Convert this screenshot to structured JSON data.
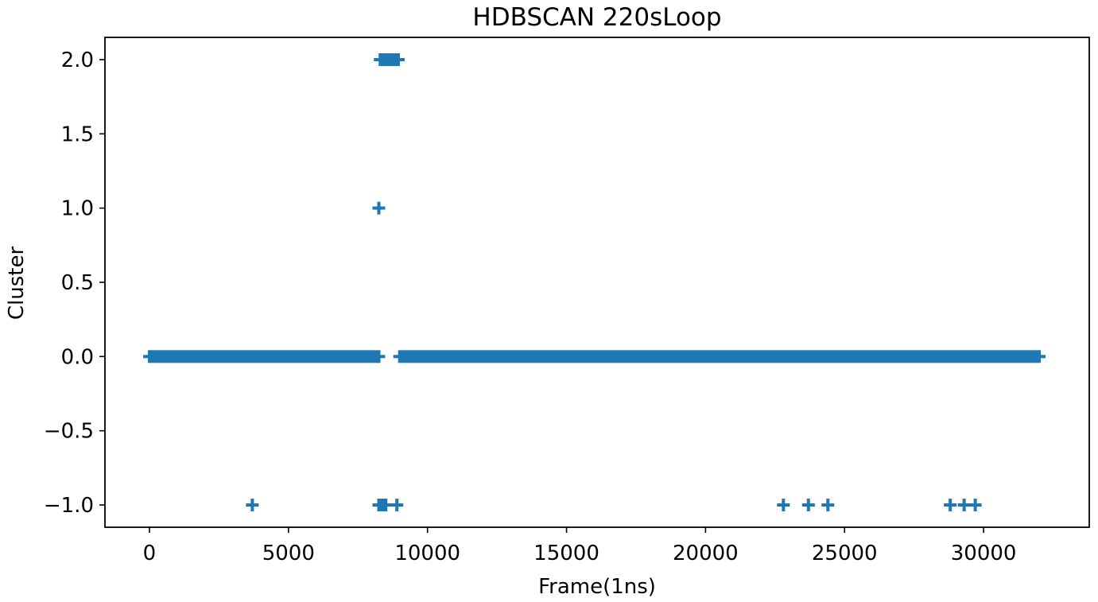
{
  "chart_data": {
    "type": "scatter",
    "title": "HDBSCAN 220sLoop",
    "xlabel": "Frame(1ns)",
    "ylabel": "Cluster",
    "xlim": [
      -1600,
      33800
    ],
    "ylim": [
      -1.15,
      2.15
    ],
    "xticks": [
      0,
      5000,
      10000,
      15000,
      20000,
      25000,
      30000
    ],
    "xtick_labels": [
      "0",
      "5000",
      "10000",
      "15000",
      "20000",
      "25000",
      "30000"
    ],
    "yticks": [
      -1.0,
      -0.5,
      0.0,
      0.5,
      1.0,
      1.5,
      2.0
    ],
    "ytick_labels": [
      "−1.0",
      "−0.5",
      "0.0",
      "0.5",
      "1.0",
      "1.5",
      "2.0"
    ],
    "grid": false,
    "marker": "+",
    "color": "#1f77b4",
    "series": [
      {
        "dense_segments": [
          {
            "x_start": 0,
            "x_end": 8250,
            "y": 0
          },
          {
            "x_start": 9000,
            "x_end": 32000,
            "y": 0
          },
          {
            "x_start": 8300,
            "x_end": 8950,
            "y": 2
          }
        ],
        "points": [
          {
            "x": 8250,
            "y": 1
          },
          {
            "x": 3700,
            "y": -1
          },
          {
            "x": 8250,
            "y": -1
          },
          {
            "x": 8320,
            "y": -1
          },
          {
            "x": 8400,
            "y": -1
          },
          {
            "x": 8500,
            "y": -1
          },
          {
            "x": 8900,
            "y": -1
          },
          {
            "x": 22800,
            "y": -1
          },
          {
            "x": 23700,
            "y": -1
          },
          {
            "x": 24400,
            "y": -1
          },
          {
            "x": 28800,
            "y": -1
          },
          {
            "x": 29300,
            "y": -1
          },
          {
            "x": 29700,
            "y": -1
          }
        ]
      }
    ]
  }
}
